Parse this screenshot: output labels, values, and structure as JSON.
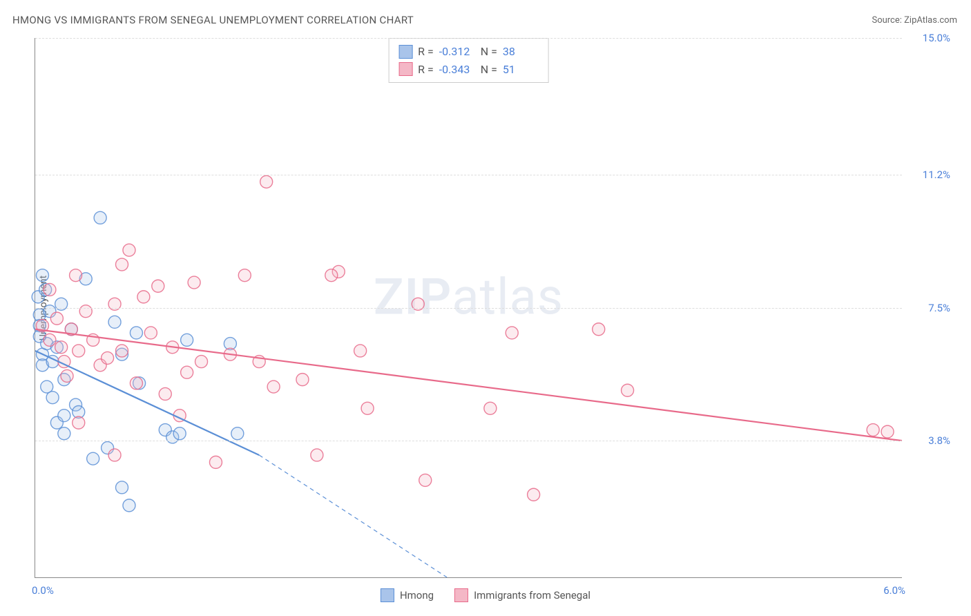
{
  "header": {
    "title": "HMONG VS IMMIGRANTS FROM SENEGAL UNEMPLOYMENT CORRELATION CHART",
    "source_prefix": "Source: ",
    "source_name": "ZipAtlas.com"
  },
  "chart": {
    "type": "scatter",
    "y_label": "Unemployment",
    "watermark_bold": "ZIP",
    "watermark_rest": "atlas",
    "background_color": "#ffffff",
    "grid_color": "#dddddd",
    "axis_color": "#888888",
    "xlim": [
      0.0,
      6.0
    ],
    "ylim": [
      0.0,
      15.0
    ],
    "x_ticks": [
      {
        "v": 0.0,
        "label": "0.0%"
      },
      {
        "v": 6.0,
        "label": "6.0%"
      }
    ],
    "y_ticks_right": [
      {
        "v": 3.8,
        "label": "3.8%"
      },
      {
        "v": 7.5,
        "label": "7.5%"
      },
      {
        "v": 11.2,
        "label": "11.2%"
      },
      {
        "v": 15.0,
        "label": "15.0%"
      }
    ],
    "y_gridlines": [
      3.8,
      7.5,
      11.2,
      15.0
    ],
    "marker_radius": 9,
    "marker_fill_opacity": 0.28,
    "marker_stroke_opacity": 0.85,
    "marker_stroke_width": 1.4,
    "trend_line_width": 2.2,
    "series": [
      {
        "key": "hmong",
        "label": "Hmong",
        "color": "#5b8fd6",
        "fill": "#a9c4ea",
        "stroke": "#5b8fd6",
        "r_label": "R =",
        "r_value": "-0.312",
        "n_label": "N =",
        "n_value": "38",
        "trend": {
          "x1": 0.0,
          "y1": 6.3,
          "x2": 1.55,
          "y2": 3.4,
          "dash_x2": 2.85,
          "dash_y2": 0.0
        },
        "points": [
          [
            0.02,
            7.8
          ],
          [
            0.03,
            7.3
          ],
          [
            0.03,
            7.0
          ],
          [
            0.03,
            6.7
          ],
          [
            0.05,
            8.4
          ],
          [
            0.05,
            6.2
          ],
          [
            0.05,
            5.9
          ],
          [
            0.07,
            8.0
          ],
          [
            0.08,
            5.3
          ],
          [
            0.08,
            6.5
          ],
          [
            0.1,
            7.4
          ],
          [
            0.12,
            6.0
          ],
          [
            0.12,
            5.0
          ],
          [
            0.15,
            6.4
          ],
          [
            0.15,
            4.3
          ],
          [
            0.18,
            7.6
          ],
          [
            0.2,
            4.0
          ],
          [
            0.2,
            4.5
          ],
          [
            0.2,
            5.5
          ],
          [
            0.25,
            6.9
          ],
          [
            0.28,
            4.8
          ],
          [
            0.3,
            4.6
          ],
          [
            0.35,
            8.3
          ],
          [
            0.4,
            3.3
          ],
          [
            0.45,
            10.0
          ],
          [
            0.5,
            3.6
          ],
          [
            0.55,
            7.1
          ],
          [
            0.6,
            2.5
          ],
          [
            0.6,
            6.2
          ],
          [
            0.65,
            2.0
          ],
          [
            0.7,
            6.8
          ],
          [
            0.72,
            5.4
          ],
          [
            0.9,
            4.1
          ],
          [
            0.95,
            3.9
          ],
          [
            1.0,
            4.0
          ],
          [
            1.05,
            6.6
          ],
          [
            1.35,
            6.5
          ],
          [
            1.4,
            4.0
          ]
        ]
      },
      {
        "key": "senegal",
        "label": "Immigrants from Senegal",
        "color": "#e86a8a",
        "fill": "#f4b7c6",
        "stroke": "#e86a8a",
        "r_label": "R =",
        "r_value": "-0.343",
        "n_label": "N =",
        "n_value": "51",
        "trend": {
          "x1": 0.0,
          "y1": 6.9,
          "x2": 6.0,
          "y2": 3.8
        },
        "points": [
          [
            0.05,
            7.0
          ],
          [
            0.1,
            8.0
          ],
          [
            0.1,
            6.6
          ],
          [
            0.15,
            7.2
          ],
          [
            0.18,
            6.4
          ],
          [
            0.2,
            6.0
          ],
          [
            0.22,
            5.6
          ],
          [
            0.25,
            6.9
          ],
          [
            0.28,
            8.4
          ],
          [
            0.3,
            6.3
          ],
          [
            0.3,
            4.3
          ],
          [
            0.35,
            7.4
          ],
          [
            0.4,
            6.6
          ],
          [
            0.45,
            5.9
          ],
          [
            0.5,
            6.1
          ],
          [
            0.55,
            7.6
          ],
          [
            0.55,
            3.4
          ],
          [
            0.6,
            8.7
          ],
          [
            0.6,
            6.3
          ],
          [
            0.65,
            9.1
          ],
          [
            0.7,
            5.4
          ],
          [
            0.75,
            7.8
          ],
          [
            0.8,
            6.8
          ],
          [
            0.85,
            8.1
          ],
          [
            0.9,
            5.1
          ],
          [
            0.95,
            6.4
          ],
          [
            1.0,
            4.5
          ],
          [
            1.05,
            5.7
          ],
          [
            1.1,
            8.2
          ],
          [
            1.15,
            6.0
          ],
          [
            1.25,
            3.2
          ],
          [
            1.35,
            6.2
          ],
          [
            1.45,
            8.4
          ],
          [
            1.55,
            6.0
          ],
          [
            1.6,
            11.0
          ],
          [
            1.65,
            5.3
          ],
          [
            1.85,
            5.5
          ],
          [
            1.95,
            3.4
          ],
          [
            2.1,
            8.5
          ],
          [
            2.25,
            6.3
          ],
          [
            2.3,
            4.7
          ],
          [
            2.65,
            7.6
          ],
          [
            2.7,
            2.7
          ],
          [
            3.15,
            4.7
          ],
          [
            3.3,
            6.8
          ],
          [
            3.45,
            2.3
          ],
          [
            3.9,
            6.9
          ],
          [
            4.1,
            5.2
          ],
          [
            5.8,
            4.1
          ],
          [
            5.9,
            4.05
          ],
          [
            2.05,
            8.4
          ]
        ]
      }
    ]
  },
  "legend": {
    "items": [
      {
        "key": "hmong",
        "label": "Hmong",
        "fill": "#a9c4ea",
        "stroke": "#5b8fd6"
      },
      {
        "key": "senegal",
        "label": "Immigrants from Senegal",
        "fill": "#f4b7c6",
        "stroke": "#e86a8a"
      }
    ]
  }
}
